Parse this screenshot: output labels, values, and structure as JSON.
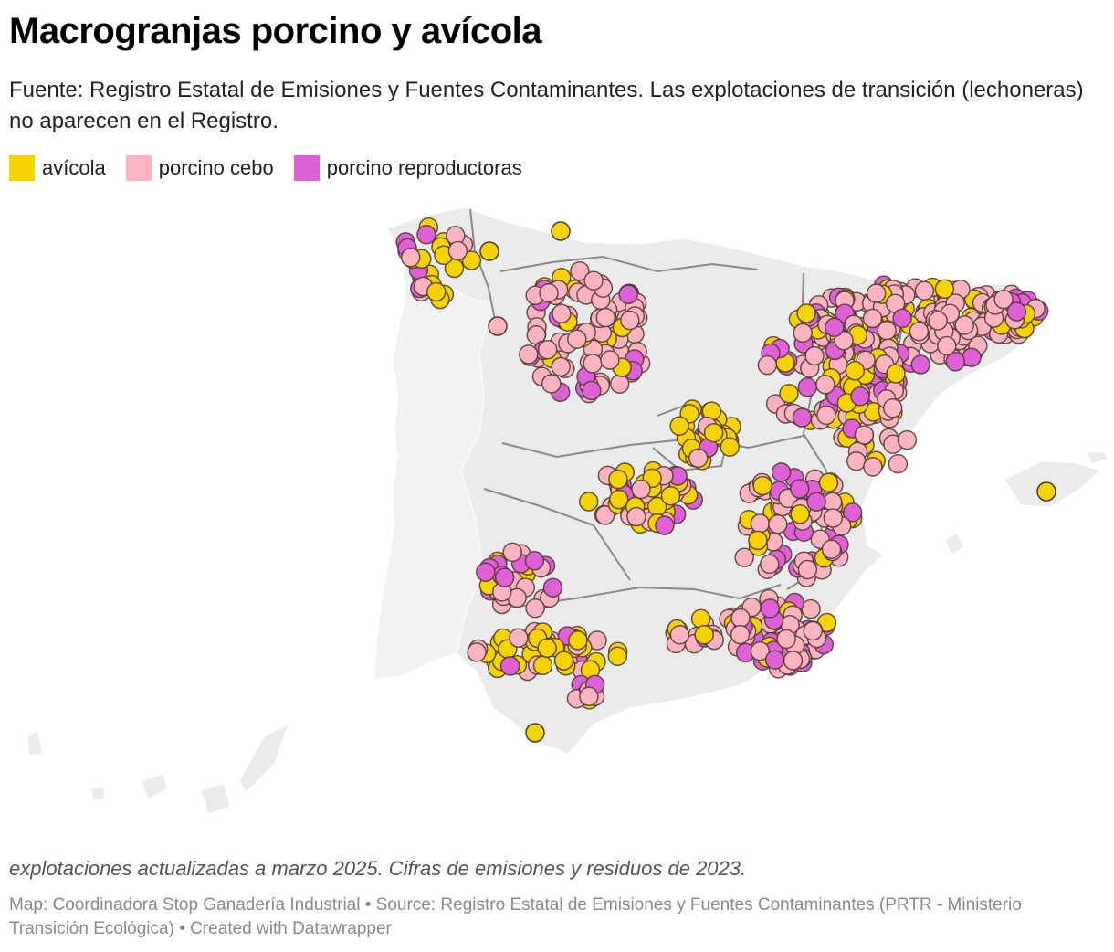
{
  "header": {
    "title": "Macrogranjas porcino y avícola",
    "subtitle": "Fuente: Registro Estatal de Emisiones y Fuentes Contaminantes. Las explotaciones de transición (lechoneras) no aparecen en el Registro."
  },
  "legend": [
    {
      "label": "avícola",
      "color": "#f5d200"
    },
    {
      "label": "porcino cebo",
      "color": "#ffb3c0"
    },
    {
      "label": "porcino reproductoras",
      "color": "#e060d8"
    }
  ],
  "map": {
    "region": "Spain",
    "marker_style": "circle",
    "land_color": "#ebebeb",
    "border_color": "#8a8a8a"
  },
  "footer": {
    "notes": "explotaciones actualizadas a marzo 2025. Cifras de emisiones y residuos de 2023.",
    "credits": "Map: Coordinadora Stop Ganadería Industrial • Source: Registro Estatal de Emisiones y Fuentes Contaminantes (PRTR - Ministerio Transición Ecológica)  • Created with Datawrapper"
  }
}
